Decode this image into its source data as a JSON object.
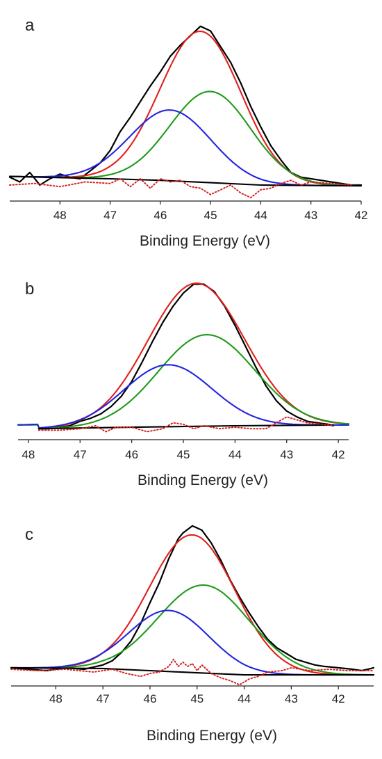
{
  "chart_data": [
    {
      "type": "line",
      "panel_label": "a",
      "xlabel": "Binding Energy (eV)",
      "ylabel": "",
      "x_reversed": true,
      "xlim": [
        49.0,
        42.0
      ],
      "ylim": [
        -0.1,
        1.0
      ],
      "ticks": [
        "48",
        "47",
        "46",
        "45",
        "44",
        "43",
        "42"
      ],
      "grid": false,
      "series": [
        {
          "key": "raw",
          "color": "#000000",
          "style": "solid",
          "points": [
            [
              49.0,
              0.05
            ],
            [
              48.8,
              0.02
            ],
            [
              48.6,
              0.08
            ],
            [
              48.4,
              0.0
            ],
            [
              48.2,
              0.04
            ],
            [
              48.0,
              0.07
            ],
            [
              47.8,
              0.05
            ],
            [
              47.6,
              0.04
            ],
            [
              47.4,
              0.09
            ],
            [
              47.2,
              0.14
            ],
            [
              47.0,
              0.22
            ],
            [
              46.8,
              0.34
            ],
            [
              46.6,
              0.43
            ],
            [
              46.4,
              0.53
            ],
            [
              46.2,
              0.63
            ],
            [
              46.0,
              0.72
            ],
            [
              45.8,
              0.82
            ],
            [
              45.6,
              0.89
            ],
            [
              45.4,
              0.95
            ],
            [
              45.2,
              1.01
            ],
            [
              45.0,
              0.98
            ],
            [
              44.8,
              0.88
            ],
            [
              44.6,
              0.78
            ],
            [
              44.4,
              0.65
            ],
            [
              44.2,
              0.5
            ],
            [
              44.0,
              0.37
            ],
            [
              43.8,
              0.25
            ],
            [
              43.6,
              0.16
            ],
            [
              43.4,
              0.08
            ],
            [
              43.2,
              0.05
            ],
            [
              43.0,
              0.04
            ],
            [
              42.8,
              0.03
            ],
            [
              42.6,
              0.02
            ],
            [
              42.4,
              0.01
            ],
            [
              42.2,
              0.0
            ],
            [
              42.0,
              0.0
            ]
          ]
        },
        {
          "key": "envelope",
          "color": "#e0201b",
          "style": "solid",
          "peaks": [
            {
              "center": 45.2,
              "fwhm": 1.9,
              "height": 0.96
            }
          ]
        },
        {
          "key": "component-1",
          "color": "#1f9a1a",
          "style": "solid",
          "peaks": [
            {
              "center": 45.0,
              "fwhm": 1.9,
              "height": 0.58
            }
          ]
        },
        {
          "key": "component-2",
          "color": "#2424e0",
          "style": "solid",
          "peaks": [
            {
              "center": 45.8,
              "fwhm": 1.9,
              "height": 0.45
            }
          ]
        },
        {
          "key": "background",
          "color": "#000000",
          "style": "solid",
          "points": [
            [
              49.0,
              0.055
            ],
            [
              47.0,
              0.04
            ],
            [
              46.0,
              0.03
            ],
            [
              45.0,
              0.015
            ],
            [
              44.0,
              0.0
            ],
            [
              42.0,
              -0.005
            ]
          ]
        },
        {
          "key": "residual",
          "color": "#d42020",
          "style": "dotted",
          "points": [
            [
              49.0,
              0.0
            ],
            [
              48.5,
              0.01
            ],
            [
              48.0,
              -0.01
            ],
            [
              47.5,
              0.02
            ],
            [
              47.0,
              0.01
            ],
            [
              46.8,
              0.04
            ],
            [
              46.6,
              -0.01
            ],
            [
              46.4,
              0.04
            ],
            [
              46.2,
              -0.02
            ],
            [
              46.0,
              0.04
            ],
            [
              45.8,
              0.02
            ],
            [
              45.6,
              0.03
            ],
            [
              45.4,
              -0.01
            ],
            [
              45.2,
              -0.02
            ],
            [
              45.0,
              -0.06
            ],
            [
              44.8,
              -0.03
            ],
            [
              44.6,
              0.0
            ],
            [
              44.4,
              -0.05
            ],
            [
              44.2,
              -0.08
            ],
            [
              44.0,
              -0.03
            ],
            [
              43.8,
              -0.02
            ],
            [
              43.6,
              0.01
            ],
            [
              43.4,
              0.03
            ],
            [
              43.2,
              0.0
            ],
            [
              43.0,
              0.02
            ],
            [
              42.6,
              0.01
            ],
            [
              42.2,
              0.0
            ]
          ]
        }
      ]
    },
    {
      "type": "line",
      "panel_label": "b",
      "xlabel": "Binding Energy (eV)",
      "ylabel": "",
      "x_reversed": true,
      "xlim": [
        48.2,
        41.8
      ],
      "ylim": [
        -0.1,
        1.0
      ],
      "ticks": [
        "48",
        "47",
        "46",
        "45",
        "44",
        "43",
        "42"
      ],
      "grid": false,
      "series": [
        {
          "key": "raw",
          "color": "#000000",
          "style": "solid",
          "points": [
            [
              47.8,
              -0.02
            ],
            [
              47.6,
              -0.02
            ],
            [
              47.4,
              -0.01
            ],
            [
              47.2,
              0.0
            ],
            [
              47.0,
              0.03
            ],
            [
              46.8,
              0.05
            ],
            [
              46.6,
              0.08
            ],
            [
              46.4,
              0.13
            ],
            [
              46.2,
              0.2
            ],
            [
              46.0,
              0.3
            ],
            [
              45.8,
              0.43
            ],
            [
              45.6,
              0.57
            ],
            [
              45.4,
              0.7
            ],
            [
              45.2,
              0.81
            ],
            [
              45.0,
              0.9
            ],
            [
              44.8,
              0.96
            ],
            [
              44.6,
              0.96
            ],
            [
              44.4,
              0.91
            ],
            [
              44.2,
              0.81
            ],
            [
              44.0,
              0.68
            ],
            [
              43.8,
              0.54
            ],
            [
              43.6,
              0.4
            ],
            [
              43.4,
              0.27
            ],
            [
              43.2,
              0.17
            ],
            [
              43.0,
              0.1
            ],
            [
              42.8,
              0.06
            ],
            [
              42.6,
              0.03
            ],
            [
              42.4,
              0.02
            ],
            [
              42.2,
              0.01
            ],
            [
              42.1,
              0.0
            ]
          ]
        },
        {
          "key": "envelope",
          "color": "#e0201b",
          "style": "solid",
          "peaks": [
            {
              "center": 44.75,
              "fwhm": 2.2,
              "height": 0.97
            }
          ]
        },
        {
          "key": "component-1",
          "color": "#1f9a1a",
          "style": "solid",
          "peaks": [
            {
              "center": 44.55,
              "fwhm": 2.2,
              "height": 0.62
            }
          ]
        },
        {
          "key": "component-2",
          "color": "#2424e0",
          "style": "solid",
          "peaks": [
            {
              "center": 45.3,
              "fwhm": 2.0,
              "height": 0.42
            }
          ]
        },
        {
          "key": "background",
          "color": "#000000",
          "style": "solid",
          "points": [
            [
              47.8,
              -0.02
            ],
            [
              46.0,
              -0.01
            ],
            [
              44.0,
              0.0
            ],
            [
              42.1,
              0.005
            ]
          ]
        },
        {
          "key": "residual",
          "color": "#d42020",
          "style": "dotted",
          "points": [
            [
              47.8,
              -0.03
            ],
            [
              47.4,
              -0.03
            ],
            [
              47.0,
              -0.02
            ],
            [
              46.7,
              0.0
            ],
            [
              46.5,
              -0.04
            ],
            [
              46.3,
              -0.01
            ],
            [
              46.0,
              -0.01
            ],
            [
              45.7,
              -0.04
            ],
            [
              45.4,
              -0.02
            ],
            [
              45.2,
              0.02
            ],
            [
              45.0,
              0.01
            ],
            [
              44.8,
              -0.02
            ],
            [
              44.6,
              0.0
            ],
            [
              44.3,
              -0.02
            ],
            [
              44.0,
              -0.01
            ],
            [
              43.7,
              -0.02
            ],
            [
              43.4,
              -0.02
            ],
            [
              43.2,
              0.02
            ],
            [
              43.0,
              0.06
            ],
            [
              42.8,
              0.04
            ],
            [
              42.6,
              0.02
            ],
            [
              42.3,
              0.01
            ],
            [
              42.1,
              0.0
            ]
          ]
        }
      ]
    },
    {
      "type": "line",
      "panel_label": "c",
      "xlabel": "Binding Energy (eV)",
      "ylabel": "",
      "x_reversed": true,
      "xlim": [
        48.95,
        41.25
      ],
      "ylim": [
        -0.1,
        1.0
      ],
      "ticks": [
        "48",
        "47",
        "46",
        "45",
        "44",
        "43",
        "42"
      ],
      "grid": false,
      "series": [
        {
          "key": "raw",
          "color": "#000000",
          "style": "solid",
          "points": [
            [
              48.95,
              0.02
            ],
            [
              48.6,
              0.01
            ],
            [
              48.2,
              0.0
            ],
            [
              47.8,
              0.02
            ],
            [
              47.4,
              0.01
            ],
            [
              47.0,
              0.04
            ],
            [
              46.8,
              0.07
            ],
            [
              46.6,
              0.13
            ],
            [
              46.4,
              0.21
            ],
            [
              46.2,
              0.33
            ],
            [
              46.0,
              0.48
            ],
            [
              45.8,
              0.62
            ],
            [
              45.6,
              0.79
            ],
            [
              45.4,
              0.93
            ],
            [
              45.3,
              0.97
            ],
            [
              45.1,
              1.02
            ],
            [
              44.9,
              0.99
            ],
            [
              44.7,
              0.9
            ],
            [
              44.5,
              0.78
            ],
            [
              44.3,
              0.64
            ],
            [
              44.1,
              0.52
            ],
            [
              43.9,
              0.41
            ],
            [
              43.7,
              0.31
            ],
            [
              43.5,
              0.22
            ],
            [
              43.3,
              0.16
            ],
            [
              43.1,
              0.12
            ],
            [
              42.9,
              0.08
            ],
            [
              42.7,
              0.06
            ],
            [
              42.5,
              0.04
            ],
            [
              42.3,
              0.03
            ],
            [
              42.0,
              0.02
            ],
            [
              41.7,
              0.01
            ],
            [
              41.5,
              0.0
            ],
            [
              41.25,
              0.02
            ]
          ]
        },
        {
          "key": "envelope",
          "color": "#e0201b",
          "style": "solid",
          "peaks": [
            {
              "center": 45.1,
              "fwhm": 2.15,
              "height": 0.97
            }
          ]
        },
        {
          "key": "component-1",
          "color": "#1f9a1a",
          "style": "solid",
          "peaks": [
            {
              "center": 44.85,
              "fwhm": 2.3,
              "height": 0.62
            }
          ]
        },
        {
          "key": "component-2",
          "color": "#2424e0",
          "style": "solid",
          "peaks": [
            {
              "center": 45.6,
              "fwhm": 2.0,
              "height": 0.43
            }
          ]
        },
        {
          "key": "background",
          "color": "#000000",
          "style": "solid",
          "points": [
            [
              48.95,
              0.02
            ],
            [
              47.0,
              0.015
            ],
            [
              46.0,
              0.0
            ],
            [
              45.0,
              -0.015
            ],
            [
              44.0,
              -0.03
            ],
            [
              43.0,
              -0.03
            ],
            [
              41.25,
              -0.03
            ]
          ]
        },
        {
          "key": "residual",
          "color": "#d42020",
          "style": "dotted",
          "points": [
            [
              48.95,
              0.01
            ],
            [
              48.4,
              0.0
            ],
            [
              47.8,
              0.01
            ],
            [
              47.2,
              -0.01
            ],
            [
              46.8,
              0.01
            ],
            [
              46.5,
              -0.02
            ],
            [
              46.2,
              -0.04
            ],
            [
              46.0,
              -0.02
            ],
            [
              45.8,
              -0.01
            ],
            [
              45.6,
              0.03
            ],
            [
              45.5,
              0.08
            ],
            [
              45.4,
              0.03
            ],
            [
              45.3,
              0.06
            ],
            [
              45.2,
              0.03
            ],
            [
              45.1,
              0.05
            ],
            [
              45.0,
              0.0
            ],
            [
              44.9,
              0.04
            ],
            [
              44.7,
              -0.02
            ],
            [
              44.5,
              -0.05
            ],
            [
              44.3,
              -0.07
            ],
            [
              44.1,
              -0.1
            ],
            [
              43.9,
              -0.06
            ],
            [
              43.7,
              -0.04
            ],
            [
              43.5,
              -0.01
            ],
            [
              43.2,
              0.0
            ],
            [
              43.0,
              0.02
            ],
            [
              42.6,
              0.0
            ],
            [
              42.2,
              0.01
            ],
            [
              41.8,
              0.0
            ],
            [
              41.25,
              0.0
            ]
          ]
        }
      ]
    }
  ]
}
